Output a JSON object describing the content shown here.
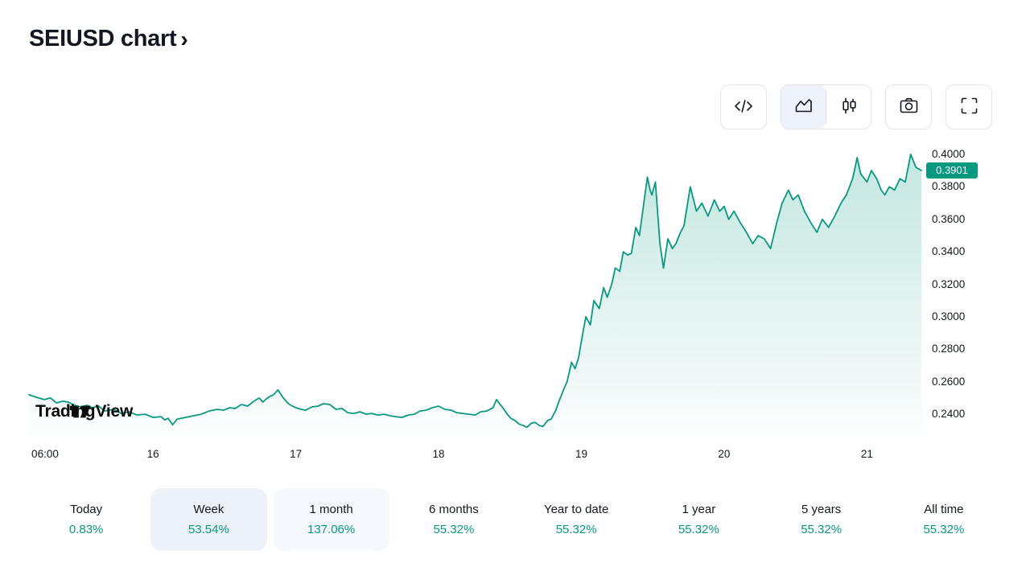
{
  "page": {
    "title": "SEIUSD chart",
    "title_chevron": "›"
  },
  "toolbar": {
    "buttons": [
      {
        "name": "source-code",
        "icon": "code-icon"
      },
      {
        "name": "area-chart",
        "icon": "area-chart-icon",
        "selected": true
      },
      {
        "name": "candlestick-chart",
        "icon": "candlestick-icon",
        "selected": false
      },
      {
        "name": "snapshot",
        "icon": "camera-icon"
      },
      {
        "name": "fullscreen",
        "icon": "fullscreen-icon"
      }
    ]
  },
  "logo_text": "TradingView",
  "chart_data": {
    "type": "area",
    "symbol": "SEIUSD",
    "line_color": "#089981",
    "fill_top": "rgba(8,153,129,0.24)",
    "fill_bottom": "rgba(8,153,129,0.01)",
    "last_price": "0.3901",
    "last_price_value": 0.3901,
    "badge_color": "#089981",
    "ylim": [
      0.2252,
      0.4059
    ],
    "grid": false,
    "legend": "none",
    "y_ticks": [
      {
        "label": "0.4000",
        "value": 0.4
      },
      {
        "label": "0.3800",
        "value": 0.38
      },
      {
        "label": "0.3600",
        "value": 0.36
      },
      {
        "label": "0.3400",
        "value": 0.34
      },
      {
        "label": "0.3200",
        "value": 0.32
      },
      {
        "label": "0.3000",
        "value": 0.3
      },
      {
        "label": "0.2800",
        "value": 0.28
      },
      {
        "label": "0.2600",
        "value": 0.26
      },
      {
        "label": "0.2400",
        "value": 0.24
      }
    ],
    "x_ticks": [
      {
        "label": "06:00",
        "x": 0.018
      },
      {
        "label": "16",
        "x": 0.139
      },
      {
        "label": "17",
        "x": 0.299
      },
      {
        "label": "18",
        "x": 0.459
      },
      {
        "label": "19",
        "x": 0.619
      },
      {
        "label": "20",
        "x": 0.779
      },
      {
        "label": "21",
        "x": 0.939
      }
    ],
    "points": [
      [
        0.0,
        0.252
      ],
      [
        0.008,
        0.2505
      ],
      [
        0.017,
        0.249
      ],
      [
        0.024,
        0.25
      ],
      [
        0.031,
        0.247
      ],
      [
        0.038,
        0.248
      ],
      [
        0.044,
        0.2475
      ],
      [
        0.051,
        0.2455
      ],
      [
        0.058,
        0.2445
      ],
      [
        0.065,
        0.2455
      ],
      [
        0.071,
        0.244
      ],
      [
        0.078,
        0.245
      ],
      [
        0.085,
        0.242
      ],
      [
        0.095,
        0.243
      ],
      [
        0.103,
        0.2405
      ],
      [
        0.112,
        0.2415
      ],
      [
        0.121,
        0.2395
      ],
      [
        0.13,
        0.24
      ],
      [
        0.139,
        0.238
      ],
      [
        0.148,
        0.2385
      ],
      [
        0.152,
        0.2365
      ],
      [
        0.156,
        0.2375
      ],
      [
        0.161,
        0.2335
      ],
      [
        0.166,
        0.237
      ],
      [
        0.175,
        0.238
      ],
      [
        0.184,
        0.239
      ],
      [
        0.193,
        0.24
      ],
      [
        0.202,
        0.242
      ],
      [
        0.211,
        0.243
      ],
      [
        0.218,
        0.2425
      ],
      [
        0.225,
        0.244
      ],
      [
        0.231,
        0.2435
      ],
      [
        0.238,
        0.246
      ],
      [
        0.245,
        0.245
      ],
      [
        0.252,
        0.248
      ],
      [
        0.258,
        0.25
      ],
      [
        0.262,
        0.2475
      ],
      [
        0.265,
        0.249
      ],
      [
        0.27,
        0.251
      ],
      [
        0.274,
        0.252
      ],
      [
        0.279,
        0.255
      ],
      [
        0.282,
        0.2525
      ],
      [
        0.285,
        0.25
      ],
      [
        0.289,
        0.2475
      ],
      [
        0.292,
        0.246
      ],
      [
        0.299,
        0.244
      ],
      [
        0.305,
        0.243
      ],
      [
        0.31,
        0.2425
      ],
      [
        0.317,
        0.2445
      ],
      [
        0.324,
        0.245
      ],
      [
        0.33,
        0.2465
      ],
      [
        0.337,
        0.246
      ],
      [
        0.344,
        0.243
      ],
      [
        0.351,
        0.2435
      ],
      [
        0.357,
        0.241
      ],
      [
        0.364,
        0.2405
      ],
      [
        0.371,
        0.2415
      ],
      [
        0.378,
        0.24
      ],
      [
        0.384,
        0.2405
      ],
      [
        0.391,
        0.2395
      ],
      [
        0.398,
        0.24
      ],
      [
        0.405,
        0.239
      ],
      [
        0.411,
        0.2385
      ],
      [
        0.418,
        0.238
      ],
      [
        0.425,
        0.2395
      ],
      [
        0.432,
        0.24
      ],
      [
        0.438,
        0.242
      ],
      [
        0.445,
        0.2425
      ],
      [
        0.452,
        0.244
      ],
      [
        0.459,
        0.245
      ],
      [
        0.466,
        0.243
      ],
      [
        0.473,
        0.2425
      ],
      [
        0.479,
        0.241
      ],
      [
        0.486,
        0.2405
      ],
      [
        0.493,
        0.24
      ],
      [
        0.5,
        0.2395
      ],
      [
        0.506,
        0.2415
      ],
      [
        0.513,
        0.242
      ],
      [
        0.52,
        0.244
      ],
      [
        0.524,
        0.249
      ],
      [
        0.528,
        0.246
      ],
      [
        0.531,
        0.244
      ],
      [
        0.536,
        0.24
      ],
      [
        0.54,
        0.2375
      ],
      [
        0.545,
        0.236
      ],
      [
        0.549,
        0.234
      ],
      [
        0.554,
        0.233
      ],
      [
        0.558,
        0.232
      ],
      [
        0.563,
        0.2345
      ],
      [
        0.567,
        0.235
      ],
      [
        0.572,
        0.233
      ],
      [
        0.576,
        0.2325
      ],
      [
        0.581,
        0.236
      ],
      [
        0.585,
        0.237
      ],
      [
        0.59,
        0.242
      ],
      [
        0.594,
        0.248
      ],
      [
        0.599,
        0.255
      ],
      [
        0.603,
        0.26
      ],
      [
        0.608,
        0.272
      ],
      [
        0.612,
        0.268
      ],
      [
        0.616,
        0.275
      ],
      [
        0.619,
        0.285
      ],
      [
        0.624,
        0.3
      ],
      [
        0.629,
        0.295
      ],
      [
        0.633,
        0.31
      ],
      [
        0.639,
        0.305
      ],
      [
        0.644,
        0.318
      ],
      [
        0.648,
        0.312
      ],
      [
        0.653,
        0.32
      ],
      [
        0.657,
        0.33
      ],
      [
        0.662,
        0.328
      ],
      [
        0.666,
        0.34
      ],
      [
        0.671,
        0.338
      ],
      [
        0.675,
        0.339
      ],
      [
        0.68,
        0.355
      ],
      [
        0.684,
        0.35
      ],
      [
        0.689,
        0.37
      ],
      [
        0.693,
        0.386
      ],
      [
        0.696,
        0.378
      ],
      [
        0.698,
        0.375
      ],
      [
        0.702,
        0.383
      ],
      [
        0.707,
        0.345
      ],
      [
        0.711,
        0.33
      ],
      [
        0.716,
        0.348
      ],
      [
        0.721,
        0.342
      ],
      [
        0.725,
        0.345
      ],
      [
        0.73,
        0.352
      ],
      [
        0.734,
        0.356
      ],
      [
        0.741,
        0.38
      ],
      [
        0.748,
        0.365
      ],
      [
        0.754,
        0.37
      ],
      [
        0.761,
        0.362
      ],
      [
        0.768,
        0.372
      ],
      [
        0.774,
        0.365
      ],
      [
        0.779,
        0.368
      ],
      [
        0.784,
        0.36
      ],
      [
        0.79,
        0.365
      ],
      [
        0.797,
        0.358
      ],
      [
        0.804,
        0.352
      ],
      [
        0.811,
        0.345
      ],
      [
        0.817,
        0.35
      ],
      [
        0.824,
        0.348
      ],
      [
        0.831,
        0.342
      ],
      [
        0.838,
        0.358
      ],
      [
        0.844,
        0.37
      ],
      [
        0.851,
        0.378
      ],
      [
        0.856,
        0.372
      ],
      [
        0.862,
        0.375
      ],
      [
        0.869,
        0.365
      ],
      [
        0.876,
        0.358
      ],
      [
        0.883,
        0.352
      ],
      [
        0.889,
        0.36
      ],
      [
        0.896,
        0.355
      ],
      [
        0.903,
        0.362
      ],
      [
        0.91,
        0.37
      ],
      [
        0.916,
        0.375
      ],
      [
        0.923,
        0.385
      ],
      [
        0.928,
        0.398
      ],
      [
        0.932,
        0.388
      ],
      [
        0.939,
        0.383
      ],
      [
        0.944,
        0.39
      ],
      [
        0.95,
        0.385
      ],
      [
        0.955,
        0.378
      ],
      [
        0.959,
        0.375
      ],
      [
        0.964,
        0.38
      ],
      [
        0.97,
        0.378
      ],
      [
        0.976,
        0.385
      ],
      [
        0.982,
        0.383
      ],
      [
        0.988,
        0.4
      ],
      [
        0.994,
        0.392
      ],
      [
        1.0,
        0.3901
      ]
    ]
  },
  "ranges": [
    {
      "label": "Today",
      "value": "0.83%",
      "style": ""
    },
    {
      "label": "Week",
      "value": "53.54%",
      "style": "selected"
    },
    {
      "label": "1 month",
      "value": "137.06%",
      "style": "hover"
    },
    {
      "label": "6 months",
      "value": "55.32%",
      "style": ""
    },
    {
      "label": "Year to date",
      "value": "55.32%",
      "style": ""
    },
    {
      "label": "1 year",
      "value": "55.32%",
      "style": ""
    },
    {
      "label": "5 years",
      "value": "55.32%",
      "style": ""
    },
    {
      "label": "All time",
      "value": "55.32%",
      "style": ""
    }
  ]
}
